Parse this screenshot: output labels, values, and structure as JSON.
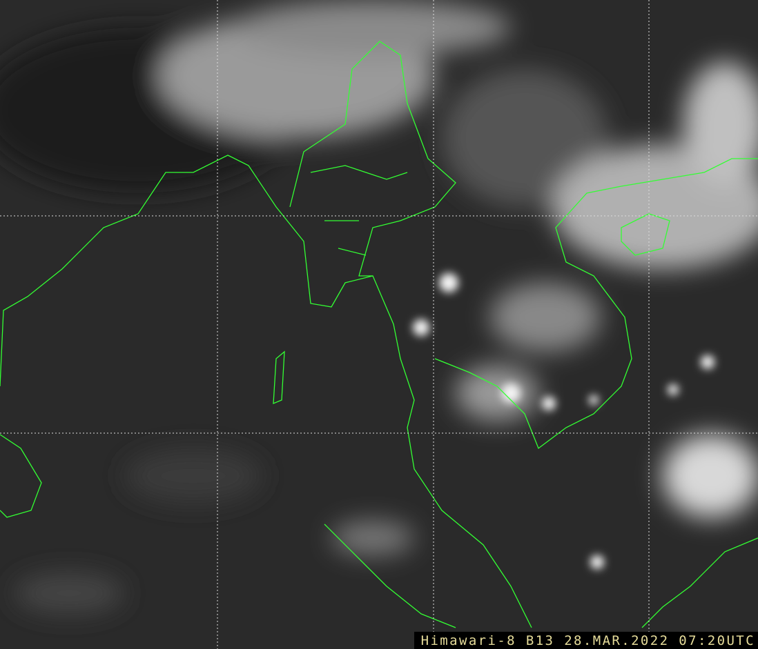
{
  "caption": "Himawari-8 B13 28.MAR.2022 07:20UTC",
  "colors": {
    "coastline": "#33ff33",
    "grid": "#dddddd",
    "caption_text": "#e6dc9a",
    "caption_bg": "#000000"
  }
}
